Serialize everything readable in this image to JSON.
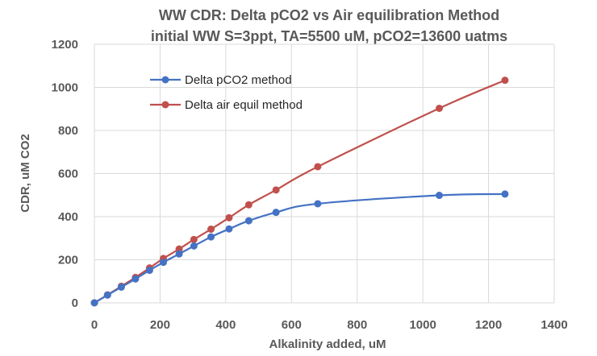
{
  "chart_data": {
    "type": "line",
    "title_line1": "WW CDR: Delta pCO2 vs Air equilibration Method",
    "title_line2": "initial WW S=3ppt, TA=5500 uM, pCO2=13600 uatms",
    "xlabel": "Alkalinity added, uM",
    "ylabel": "CDR, uM CO2",
    "xlim": [
      0,
      1400
    ],
    "ylim": [
      0,
      1200
    ],
    "xticks": [
      "0",
      "200",
      "400",
      "600",
      "800",
      "1000",
      "1200",
      "1400"
    ],
    "yticks": [
      "0",
      "200",
      "400",
      "600",
      "800",
      "1000",
      "1200"
    ],
    "grid": true,
    "legend_position": "top-left inside",
    "series": [
      {
        "name": "Delta pCO2 method",
        "color": "#4472c4",
        "x": [
          0,
          40,
          82,
          125,
          168,
          210,
          258,
          303,
          355,
          410,
          470,
          553,
          680,
          1050,
          1250
        ],
        "y": [
          0,
          36,
          73,
          111,
          151,
          188,
          227,
          264,
          306,
          343,
          381,
          420,
          460,
          499,
          505
        ]
      },
      {
        "name": "Delta air equil method",
        "color": "#c0504d",
        "x": [
          0,
          40,
          82,
          125,
          168,
          210,
          258,
          303,
          355,
          410,
          470,
          553,
          680,
          1050,
          1250
        ],
        "y": [
          0,
          37,
          77,
          118,
          162,
          206,
          250,
          294,
          342,
          395,
          455,
          524,
          632,
          903,
          1033
        ]
      }
    ]
  }
}
